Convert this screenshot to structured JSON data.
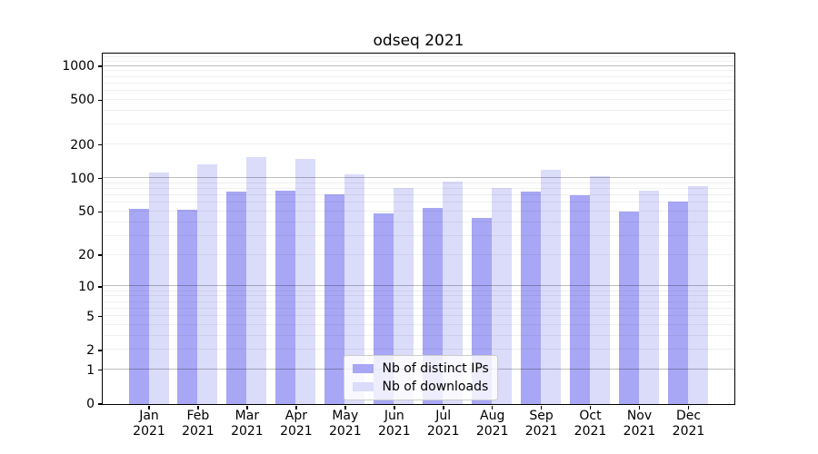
{
  "title": "odseq 2021",
  "colors": {
    "bar_ips": "#a7a7f5",
    "bar_downloads": "#dbdbfa",
    "grid_major": "rgba(0,0,0,0.26)",
    "grid_minor": "rgba(0,0,0,0.06)",
    "axis": "#000000",
    "text": "#000000"
  },
  "legend": {
    "items": [
      {
        "label": "Nb of distinct IPs",
        "series": "ips"
      },
      {
        "label": "Nb of downloads",
        "series": "downloads"
      }
    ]
  },
  "chart_data": {
    "type": "bar",
    "title": "odseq 2021",
    "categories": [
      "Jan 2021",
      "Feb 2021",
      "Mar 2021",
      "Apr 2021",
      "May 2021",
      "Jun 2021",
      "Jul 2021",
      "Aug 2021",
      "Sep 2021",
      "Oct 2021",
      "Nov 2021",
      "Dec 2021"
    ],
    "series": [
      {
        "name": "Nb of distinct IPs",
        "values": [
          53,
          52,
          76,
          77,
          71,
          48,
          54,
          44,
          76,
          70,
          50,
          61
        ]
      },
      {
        "name": "Nb of downloads",
        "values": [
          113,
          133,
          155,
          149,
          108,
          81,
          93,
          82,
          118,
          105,
          77,
          85
        ]
      }
    ],
    "yscale": "log1p",
    "ylim": [
      0,
      1300
    ],
    "y_ticks": [
      0,
      1,
      2,
      5,
      10,
      20,
      50,
      100,
      200,
      500,
      1000
    ],
    "y_minor_gridlines": [
      2,
      3,
      4,
      5,
      6,
      7,
      8,
      9,
      20,
      30,
      40,
      50,
      60,
      70,
      80,
      90,
      200,
      300,
      400,
      500,
      600,
      700,
      800,
      900,
      1100,
      1200
    ],
    "y_major_gridlines": [
      1,
      10,
      100,
      1000
    ],
    "grid": true,
    "legend_position": "lower center"
  }
}
